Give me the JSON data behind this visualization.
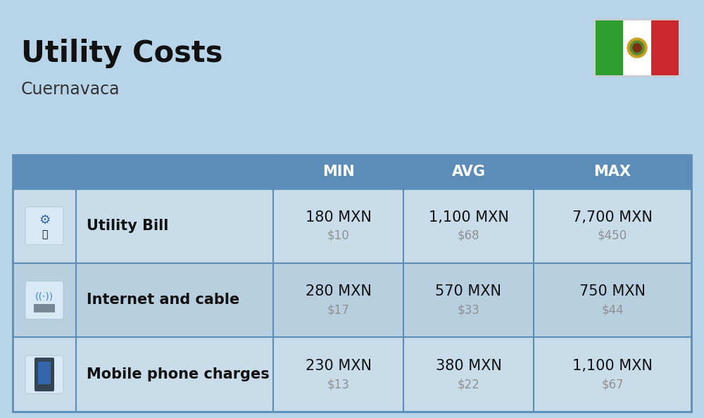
{
  "title": "Utility Costs",
  "subtitle": "Cuernavaca",
  "background_color": "#b8d4e8",
  "header_bg_color": "#5b8db8",
  "header_text_color": "#ffffff",
  "row_bg_color_even": "#c8dcea",
  "row_bg_color_odd": "#b8cfe0",
  "table_border_color": "#5b8db8",
  "rows": [
    {
      "label": "Utility Bill",
      "min_mxn": "180 MXN",
      "min_usd": "$10",
      "avg_mxn": "1,100 MXN",
      "avg_usd": "$68",
      "max_mxn": "7,700 MXN",
      "max_usd": "$450",
      "icon": "utility"
    },
    {
      "label": "Internet and cable",
      "min_mxn": "280 MXN",
      "min_usd": "$17",
      "avg_mxn": "570 MXN",
      "avg_usd": "$33",
      "max_mxn": "750 MXN",
      "max_usd": "$44",
      "icon": "internet"
    },
    {
      "label": "Mobile phone charges",
      "min_mxn": "230 MXN",
      "min_usd": "$13",
      "avg_mxn": "380 MXN",
      "avg_usd": "$22",
      "max_mxn": "1,100 MXN",
      "max_usd": "$67",
      "icon": "mobile"
    }
  ],
  "title_fontsize": 30,
  "subtitle_fontsize": 17,
  "header_fontsize": 15,
  "label_fontsize": 15,
  "value_fontsize": 15,
  "usd_fontsize": 12,
  "usd_color": "#909090",
  "label_color": "#111111",
  "value_color": "#111111",
  "flag_green": "#2e9e30",
  "flag_white": "#ffffff",
  "flag_red": "#c8282e"
}
